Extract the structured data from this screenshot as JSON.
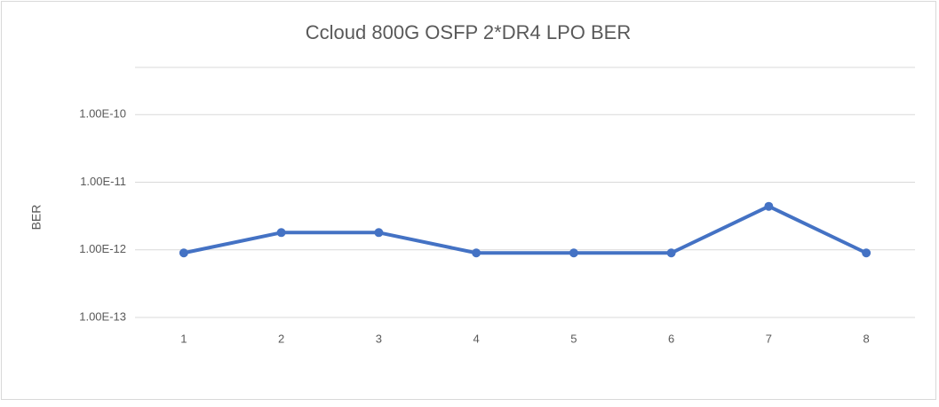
{
  "chart_data": {
    "type": "line",
    "title": "Ccloud 800G OSFP 2*DR4 LPO BER",
    "y_label": "BER",
    "categories": [
      "1",
      "2",
      "3",
      "4",
      "5",
      "6",
      "7",
      "8"
    ],
    "series": [
      {
        "name": "BER",
        "color": "#4472c4",
        "values": [
          9e-13,
          1.8e-12,
          1.8e-12,
          9e-13,
          9e-13,
          9e-13,
          4.4e-12,
          9e-13
        ]
      }
    ],
    "log_scale": true,
    "grid": true,
    "ylim": [
      1e-13,
      5e-10
    ],
    "yticks": [
      {
        "value": 1e-13,
        "label": "1.00E-13"
      },
      {
        "value": 1e-12,
        "label": "1.00E-12"
      },
      {
        "value": 1e-11,
        "label": "1.00E-11"
      },
      {
        "value": 1e-10,
        "label": "1.00E-10"
      }
    ]
  }
}
